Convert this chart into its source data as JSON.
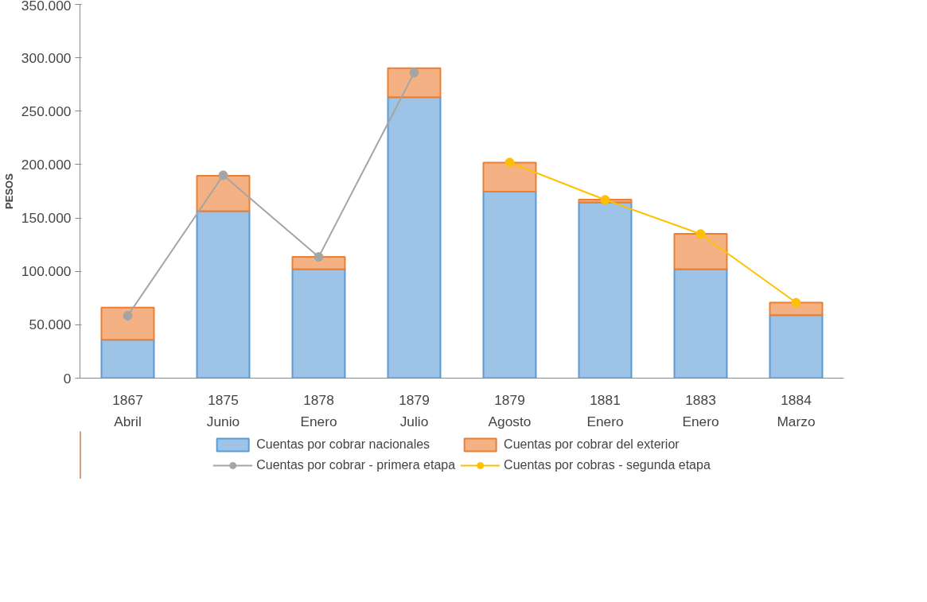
{
  "chart_data": {
    "type": "bar",
    "stacked": true,
    "ylabel": "PESOS",
    "categories": [
      "1867\nAbril",
      "1875\nJunio",
      "1878\nEnero",
      "1879\nJulio",
      "1879\nAgosto",
      "1881\nEnero",
      "1883\nEnero",
      "1884\nMarzo"
    ],
    "series": [
      {
        "name": "Cuentas por cobrar nacionales",
        "color": "#9dc3e6",
        "values": [
          36000,
          156300,
          102000,
          263000,
          174700,
          164500,
          102000,
          59100
        ]
      },
      {
        "name": "Cuentas por cobrar del exterior",
        "color": "#f4b183",
        "values": [
          30000,
          33300,
          11500,
          27200,
          27100,
          2700,
          33200,
          11600
        ]
      },
      {
        "name": "Cuentas por cobrar - primera etapa",
        "type": "line",
        "color": "#a5a5a5",
        "values": [
          58400,
          190000,
          113500,
          286000,
          null,
          null,
          null,
          null
        ]
      },
      {
        "name": "Cuentas por cobras - segunda etapa",
        "type": "line",
        "color": "#ffc000",
        "values": [
          null,
          null,
          null,
          null,
          202000,
          167000,
          135000,
          70700
        ]
      }
    ],
    "ylim": [
      0,
      350000
    ],
    "yticks": [
      {
        "value": 0,
        "label": "0"
      },
      {
        "value": 50000,
        "label": "50.000"
      },
      {
        "value": 100000,
        "label": "100.000"
      },
      {
        "value": 150000,
        "label": "150.000"
      },
      {
        "value": 200000,
        "label": "200.000"
      },
      {
        "value": 250000,
        "label": "250.000"
      },
      {
        "value": 300000,
        "label": "300.000"
      },
      {
        "value": 350000,
        "label": "350.000"
      }
    ],
    "grid": false,
    "legend": "bottom",
    "marker": "circle",
    "line_style": "solid"
  }
}
